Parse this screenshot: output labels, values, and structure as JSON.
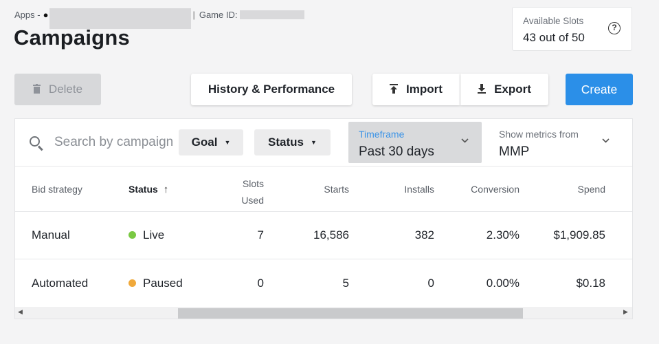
{
  "header": {
    "breadcrumb_apps": "Apps -",
    "apple_glyph": "",
    "breadcrumb_game_id": "Game ID:",
    "title": "Campaigns",
    "slots_label": "Available Slots",
    "slots_value": "43 out of 50",
    "help_icon": "?"
  },
  "toolbar": {
    "delete_label": "Delete",
    "history_label": "History & Performance",
    "import_label": "Import",
    "export_label": "Export",
    "create_label": "Create"
  },
  "filters": {
    "search_placeholder": "Search by campaign",
    "goal_label": "Goal",
    "status_label": "Status",
    "timeframe_label": "Timeframe",
    "timeframe_value": "Past 30 days",
    "metrics_label": "Show metrics from",
    "metrics_value": "MMP"
  },
  "table": {
    "columns": {
      "bid_strategy": "Bid strategy",
      "status": "Status",
      "slots_used_line1": "Slots",
      "slots_used_line2": "Used",
      "starts": "Starts",
      "installs": "Installs",
      "conversion": "Conversion",
      "spend": "Spend"
    },
    "rows": [
      {
        "bid_strategy": "Manual",
        "status": "Live",
        "status_color": "#7ac943",
        "slots_used": "7",
        "starts": "16,586",
        "installs": "382",
        "conversion": "2.30%",
        "spend": "$1,909.85"
      },
      {
        "bid_strategy": "Automated",
        "status": "Paused",
        "status_color": "#f0a93b",
        "slots_used": "0",
        "starts": "5",
        "installs": "0",
        "conversion": "0.00%",
        "spend": "$0.18"
      }
    ]
  },
  "colors": {
    "accent": "#2b8fe8",
    "timeframe_label": "#3b93e6"
  },
  "icons": {
    "trash": "trash-icon",
    "upload": "upload-icon",
    "download": "download-icon",
    "search": "search-icon",
    "sort_up": "arrow-up-icon",
    "chevron": "chevron-down-icon"
  }
}
